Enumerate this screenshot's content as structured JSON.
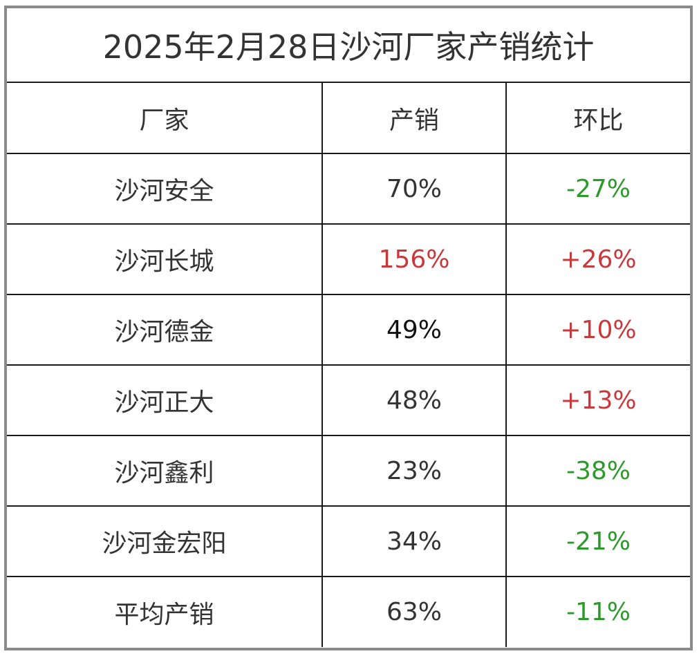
{
  "title": "2025年2月28日沙河厂家产销统计",
  "headers": {
    "manufacturer": "厂家",
    "sales": "产销",
    "change": "环比"
  },
  "colors": {
    "positive": "#c9393c",
    "negative": "#2b9a2b",
    "default": "#333333",
    "border": "#1a1a1a",
    "frame": "#8a8a8a"
  },
  "rows": [
    {
      "name": "沙河安全",
      "sales": "70%",
      "sales_color": "default",
      "change": "-27%",
      "change_color": "negative"
    },
    {
      "name": "沙河长城",
      "sales": "156%",
      "sales_color": "positive",
      "change": "+26%",
      "change_color": "positive"
    },
    {
      "name": "沙河德金",
      "sales": "49%",
      "sales_color": "black",
      "change": "+10%",
      "change_color": "positive"
    },
    {
      "name": "沙河正大",
      "sales": "48%",
      "sales_color": "default",
      "change": "+13%",
      "change_color": "positive"
    },
    {
      "name": "沙河鑫利",
      "sales": "23%",
      "sales_color": "default",
      "change": "-38%",
      "change_color": "negative"
    },
    {
      "name": "沙河金宏阳",
      "sales": "34%",
      "sales_color": "default",
      "change": "-21%",
      "change_color": "negative"
    },
    {
      "name": "平均产销",
      "sales": "63%",
      "sales_color": "default",
      "change": "-11%",
      "change_color": "negative"
    }
  ]
}
